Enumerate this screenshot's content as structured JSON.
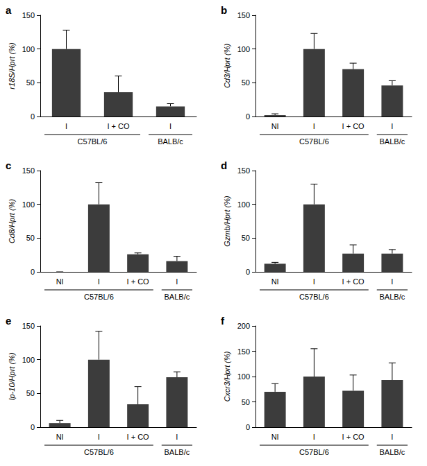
{
  "chart_data": [
    {
      "type": "bar",
      "label": "a",
      "y_label": "r18S/Hprt (%)",
      "categories": [
        "I",
        "I + CO",
        "I"
      ],
      "groups": [
        "C57BL/6",
        "C57BL/6",
        "BALB/c"
      ],
      "values": [
        100,
        36,
        15
      ],
      "errors": [
        28,
        24,
        4
      ],
      "color": "#3c3c3c",
      "ylim": [
        0,
        150
      ],
      "yticks": [
        0,
        50,
        100,
        150
      ]
    },
    {
      "type": "bar",
      "label": "b",
      "y_label": "Cd3/Hprt (%)",
      "categories": [
        "NI",
        "I",
        "I + CO",
        "I"
      ],
      "groups": [
        "C57BL/6",
        "C57BL/6",
        "C57BL/6",
        "BALB/c"
      ],
      "values": [
        2,
        100,
        70,
        46
      ],
      "errors": [
        2,
        23,
        9,
        7
      ],
      "color": "#3c3c3c",
      "ylim": [
        0,
        150
      ],
      "yticks": [
        0,
        50,
        100,
        150
      ]
    },
    {
      "type": "bar",
      "label": "c",
      "y_label": "Cd8/Hprt (%)",
      "categories": [
        "NI",
        "I",
        "I + CO",
        "I"
      ],
      "groups": [
        "C57BL/6",
        "C57BL/6",
        "C57BL/6",
        "BALB/c"
      ],
      "values": [
        0,
        100,
        26,
        16
      ],
      "errors": [
        0,
        32,
        2,
        7
      ],
      "color": "#3c3c3c",
      "ylim": [
        0,
        150
      ],
      "yticks": [
        0,
        50,
        100,
        150
      ]
    },
    {
      "type": "bar",
      "label": "d",
      "y_label": "Gzmb/Hprt (%)",
      "categories": [
        "NI",
        "I",
        "I + CO",
        "I"
      ],
      "groups": [
        "C57BL/6",
        "C57BL/6",
        "C57BL/6",
        "BALB/c"
      ],
      "values": [
        12,
        100,
        27,
        27
      ],
      "errors": [
        2,
        30,
        13,
        6
      ],
      "color": "#3c3c3c",
      "ylim": [
        0,
        150
      ],
      "yticks": [
        0,
        50,
        100,
        150
      ]
    },
    {
      "type": "bar",
      "label": "e",
      "y_label": "Ip-10/Hprt (%)",
      "categories": [
        "NI",
        "I",
        "I + CO",
        "I"
      ],
      "groups": [
        "C57BL/6",
        "C57BL/6",
        "C57BL/6",
        "BALB/c"
      ],
      "values": [
        6,
        100,
        34,
        74
      ],
      "errors": [
        4,
        42,
        26,
        8
      ],
      "color": "#3c3c3c",
      "ylim": [
        0,
        150
      ],
      "yticks": [
        0,
        50,
        100,
        150
      ]
    },
    {
      "type": "bar",
      "label": "f",
      "y_label": "Cxcr3/Hprt (%)",
      "categories": [
        "NI",
        "I",
        "I + CO",
        "I"
      ],
      "groups": [
        "C57BL/6",
        "C57BL/6",
        "C57BL/6",
        "BALB/c"
      ],
      "values": [
        70,
        100,
        72,
        93
      ],
      "errors": [
        16,
        55,
        31,
        34
      ],
      "color": "#3c3c3c",
      "ylim": [
        0,
        200
      ],
      "yticks": [
        0,
        50,
        100,
        150,
        200
      ]
    }
  ]
}
